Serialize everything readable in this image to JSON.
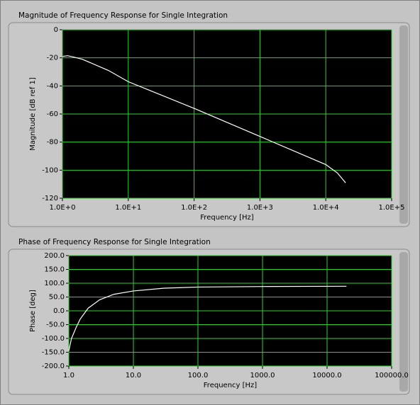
{
  "chart_data": [
    {
      "type": "line",
      "title": "Magnitude of Frequency Response for Single Integration",
      "x_label": "Frequency [Hz]",
      "y_label": "Magnitude [dB ref 1]",
      "x_scale": "log",
      "grid": true,
      "grid_color": "#2fd12f",
      "xlim": [
        1,
        100000
      ],
      "xticks": [
        {
          "value": 1,
          "label": "1.0E+0"
        },
        {
          "value": 10,
          "label": "1.0E+1"
        },
        {
          "value": 100,
          "label": "1.0E+2"
        },
        {
          "value": 1000,
          "label": "1.0E+3"
        },
        {
          "value": 10000,
          "label": "1.0E+4"
        },
        {
          "value": 100000,
          "label": "1.0E+5"
        }
      ],
      "ylim": [
        -120,
        0
      ],
      "yticks": [
        0,
        -20,
        -40,
        -60,
        -80,
        -100,
        -120
      ],
      "x": [
        1,
        1.2,
        1.5,
        2,
        5,
        10,
        100,
        1000,
        10000,
        15000,
        20000
      ],
      "series": [
        {
          "color": "#ffffff",
          "values": [
            -19,
            -18.5,
            -19.5,
            -21,
            -29,
            -37,
            -56,
            -76,
            -96,
            -102,
            -109
          ]
        }
      ]
    },
    {
      "type": "line",
      "title": "Phase of Frequency Response for Single Integration",
      "x_label": "Frequency [Hz]",
      "y_label": "Phase [deg]",
      "x_scale": "log",
      "grid": true,
      "grid_color": "#2fd12f",
      "xlim": [
        1,
        100000
      ],
      "xticks": [
        {
          "value": 1,
          "label": "1.0"
        },
        {
          "value": 10,
          "label": "10.0"
        },
        {
          "value": 100,
          "label": "100.0"
        },
        {
          "value": 1000,
          "label": "1000.0"
        },
        {
          "value": 10000,
          "label": "10000.0"
        },
        {
          "value": 100000,
          "label": "100000.0"
        }
      ],
      "ylim": [
        -200,
        200
      ],
      "yticks": [
        {
          "value": 200,
          "label": "200.0"
        },
        {
          "value": 150,
          "label": "150.0"
        },
        {
          "value": 100,
          "label": "100.0"
        },
        {
          "value": 50,
          "label": "50.0"
        },
        {
          "value": 0,
          "label": "0.0"
        },
        {
          "value": -50,
          "label": "-50.0"
        },
        {
          "value": -100,
          "label": "-100.0"
        },
        {
          "value": -150,
          "label": "-150.0"
        },
        {
          "value": -200,
          "label": "-200.0"
        }
      ],
      "x": [
        1,
        1.1,
        1.3,
        1.5,
        2,
        3,
        5,
        10,
        30,
        100,
        1000,
        20000
      ],
      "series": [
        {
          "color": "#ffffff",
          "values": [
            -145,
            -100,
            -60,
            -30,
            10,
            40,
            60,
            72,
            82,
            86,
            88,
            89
          ]
        }
      ]
    }
  ]
}
